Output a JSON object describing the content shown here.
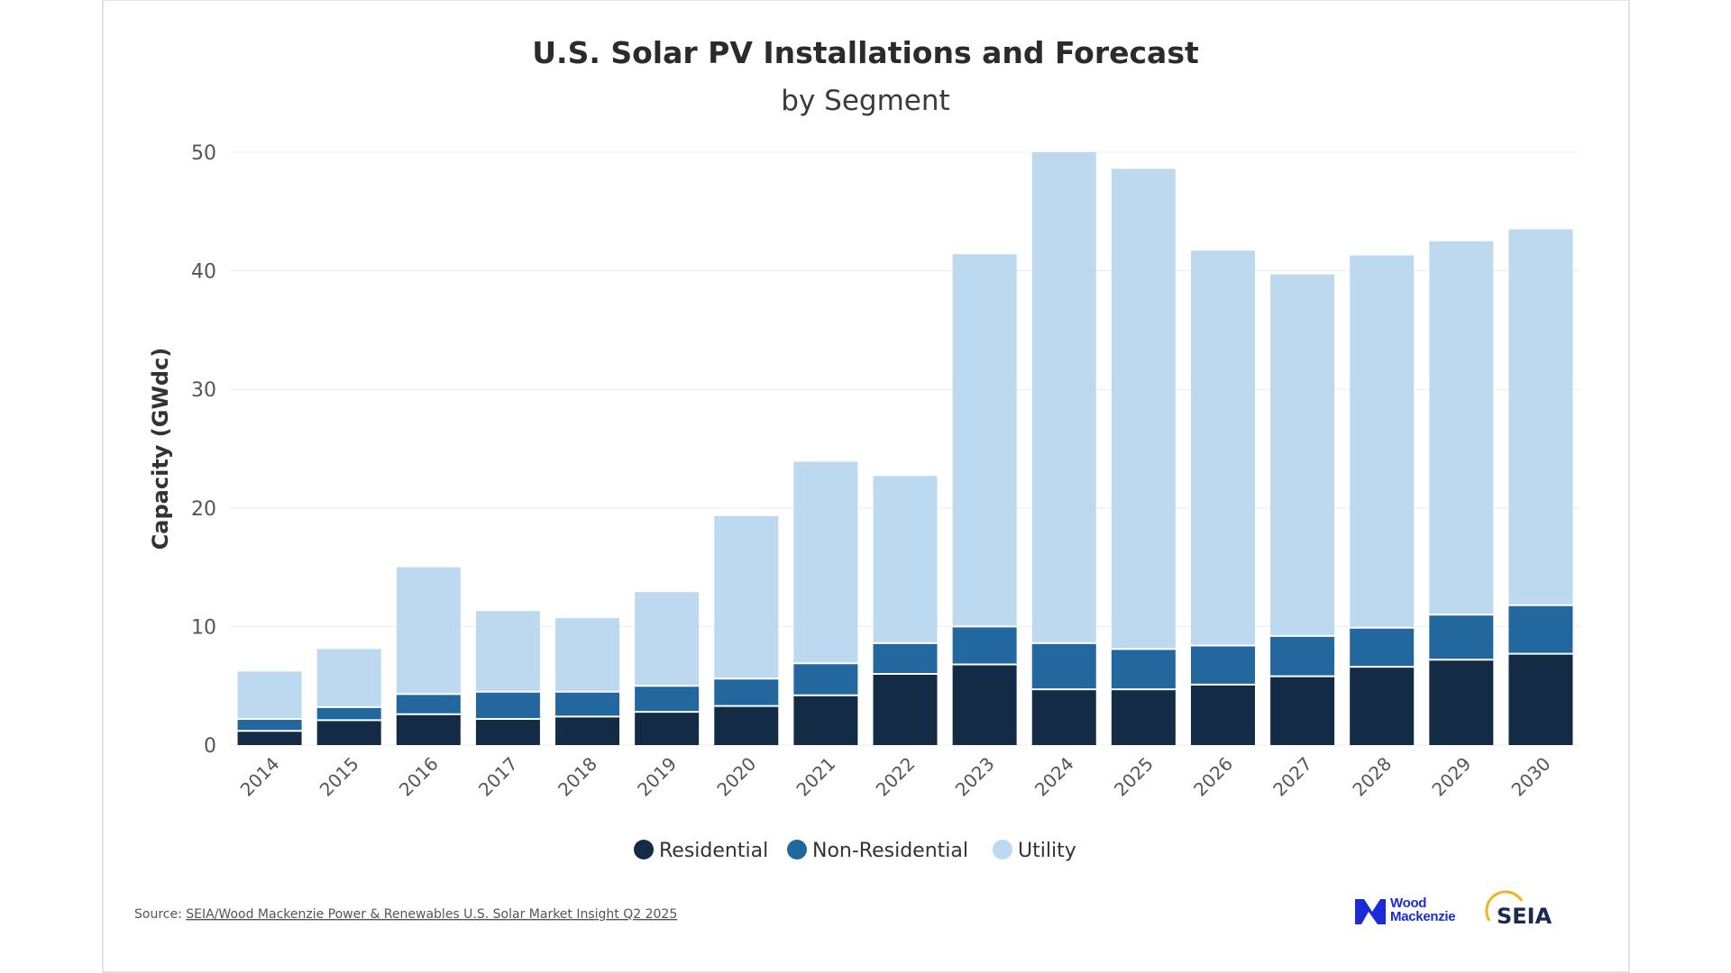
{
  "chart_data": {
    "type": "bar",
    "stacked": true,
    "title": "U.S. Solar PV Installations and Forecast",
    "subtitle": "by Segment",
    "xlabel": "",
    "ylabel": "Capacity (GWdc)",
    "ylim": [
      0,
      50
    ],
    "yticks": [
      "0",
      "10",
      "20",
      "30",
      "40",
      "50"
    ],
    "grid": true,
    "legend_position": "bottom",
    "categories": [
      "2014",
      "2015",
      "2016",
      "2017",
      "2018",
      "2019",
      "2020",
      "2021",
      "2022",
      "2023",
      "2024",
      "2025",
      "2026",
      "2027",
      "2028",
      "2029",
      "2030"
    ],
    "series": [
      {
        "name": "Residential",
        "color": "#132b45",
        "values": [
          1.2,
          2.1,
          2.6,
          2.2,
          2.4,
          2.8,
          3.3,
          4.2,
          6.0,
          6.8,
          4.7,
          4.7,
          5.1,
          5.8,
          6.6,
          7.2,
          7.7
        ]
      },
      {
        "name": "Non-Residential",
        "color": "#22679e",
        "values": [
          1.0,
          1.1,
          1.7,
          2.3,
          2.1,
          2.2,
          2.3,
          2.7,
          2.6,
          3.2,
          3.9,
          3.4,
          3.3,
          3.4,
          3.3,
          3.8,
          4.1
        ]
      },
      {
        "name": "Utility",
        "color": "#bcd9ef",
        "values": [
          4.0,
          4.9,
          10.7,
          6.8,
          6.2,
          7.9,
          13.7,
          17.0,
          14.1,
          31.4,
          41.4,
          40.5,
          33.3,
          30.5,
          31.4,
          31.5,
          31.7
        ]
      }
    ]
  },
  "footer": {
    "source_label": "Source: ",
    "source_link": "SEIA/Wood Mackenzie Power & Renewables U.S. Solar Market Insight Q2 2025",
    "logo_wood_mackenzie": "Wood Mackenzie",
    "logo_seia": "SEIA"
  }
}
